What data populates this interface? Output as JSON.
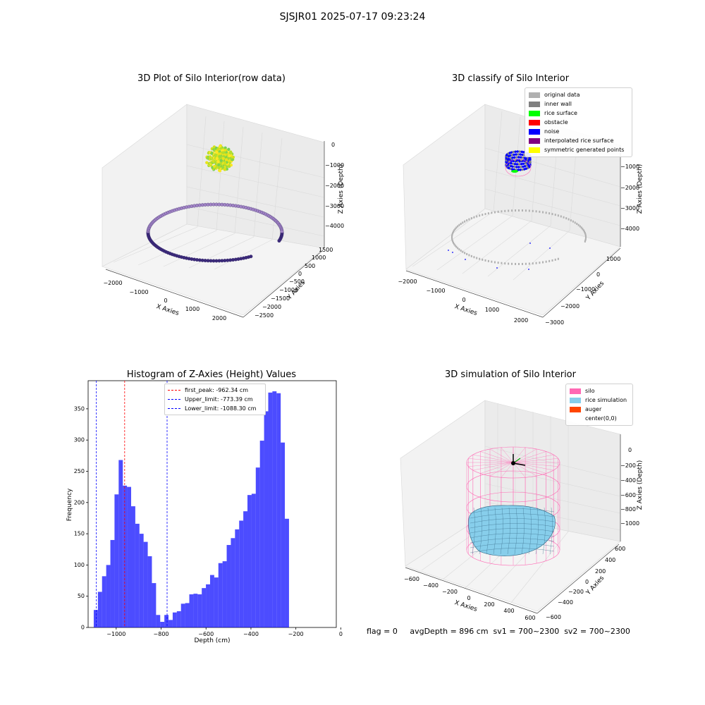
{
  "suptitle": "SJSJR01 2025-07-17 09:23:24",
  "panels": {
    "p1": {
      "title": "3D Plot of Silo Interior(row data)",
      "xlabel": "X Axies",
      "ylabel": "Y Axies",
      "zlabel": "Z Axies (Depth)",
      "xticks": [
        "−2000",
        "−1000",
        "0",
        "1000",
        "2000"
      ],
      "yticks": [
        "1500",
        "1000",
        "500",
        "0",
        "−500",
        "−1000",
        "−1500",
        "−2000",
        "−2500"
      ],
      "zticks": [
        "0",
        "−1000",
        "−2000",
        "−3000",
        "−4000"
      ]
    },
    "p2": {
      "title": "3D classify of Silo Interior",
      "xlabel": "X Axies",
      "ylabel": "Y Axies",
      "zlabel": "Z Axies (Depth)",
      "xticks": [
        "−2000",
        "−1000",
        "0",
        "1000",
        "2000"
      ],
      "yticks": [
        "1000",
        "0",
        "−1000",
        "−2000",
        "−3000"
      ],
      "zticks": [
        "−1000",
        "−2000",
        "−3000",
        "−4000"
      ],
      "legend": [
        {
          "label": "original data",
          "color": "#b0b0b0"
        },
        {
          "label": "inner wall",
          "color": "#808080"
        },
        {
          "label": "rice surface",
          "color": "#00ff00"
        },
        {
          "label": "obstacle",
          "color": "#ff0000"
        },
        {
          "label": "noise",
          "color": "#0000ff"
        },
        {
          "label": "interpolated rice surface",
          "color": "#800080"
        },
        {
          "label": "symmetric generated points",
          "color": "#ffff00"
        }
      ]
    },
    "p3": {
      "title": "Histogram of Z-Axies (Height) Values"
    },
    "p4": {
      "title": "3D simulation of Silo Interior",
      "xlabel": "X Axies",
      "ylabel": "Y Axies",
      "zlabel": "Z Axies (Depth)",
      "xticks": [
        "−600",
        "−400",
        "−200",
        "0",
        "200",
        "400",
        "600"
      ],
      "yticks": [
        "600",
        "400",
        "200",
        "0",
        "−200",
        "−400",
        "−600"
      ],
      "zticks": [
        "0",
        "−200",
        "−400",
        "−600",
        "−800",
        "−1000"
      ],
      "legend": [
        {
          "label": "silo",
          "color": "#ff69b4"
        },
        {
          "label": "rice simulation",
          "color": "#87ceeb"
        },
        {
          "label": "auger",
          "color": "#ff4500"
        },
        {
          "label": "center(0,0)",
          "color": "#ffffff"
        }
      ]
    }
  },
  "footer": "flag = 0     avgDepth = 896 cm  sv1 = 700~2300  sv2 = 700~2300",
  "chart_data": {
    "type": "bar",
    "title": "Histogram of Z-Axies (Height) Values",
    "xlabel": "Depth (cm)",
    "ylabel": "Frequency",
    "xlim": [
      -1125,
      -20
    ],
    "ylim": [
      0,
      395
    ],
    "xticks": [
      -1000,
      -800,
      -600,
      -400,
      -200,
      0
    ],
    "yticks": [
      0,
      50,
      100,
      150,
      200,
      250,
      300,
      350
    ],
    "bar_color": "#0000ff",
    "bin_start": -1100,
    "bin_width": 18.5,
    "values": [
      28,
      57,
      82,
      100,
      140,
      213,
      268,
      227,
      225,
      194,
      166,
      150,
      137,
      114,
      71,
      20,
      9,
      20,
      12,
      24,
      26,
      38,
      39,
      53,
      54,
      53,
      63,
      69,
      84,
      80,
      103,
      106,
      132,
      143,
      157,
      171,
      186,
      212,
      214,
      256,
      299,
      346,
      376,
      378,
      375,
      296,
      174
    ],
    "lines": [
      {
        "name": "first_peak",
        "label": "first_peak: -962.34 cm",
        "x": -962.34,
        "color": "#ff0000"
      },
      {
        "name": "Upper_limit",
        "label": "Upper_limit: -773.39 cm",
        "x": -773.39,
        "color": "#0000ff"
      },
      {
        "name": "Lower_limit",
        "label": "Lower_limit: -1088.30 cm",
        "x": -1088.3,
        "color": "#0000ff"
      }
    ]
  }
}
